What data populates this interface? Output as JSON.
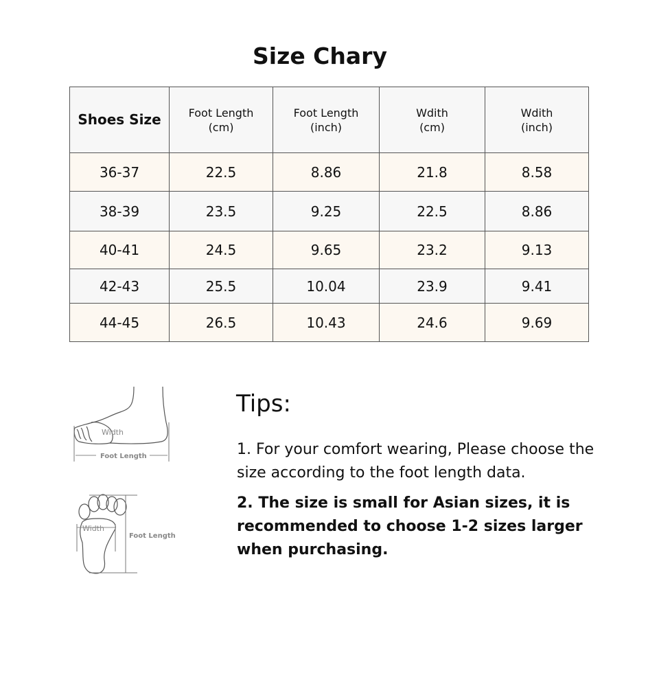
{
  "title": "Size Chary",
  "table": {
    "headers": [
      [
        "Shoes Size"
      ],
      [
        "Foot Length",
        "(cm)"
      ],
      [
        "Foot Length",
        "(inch)"
      ],
      [
        "Wdith",
        "(cm)"
      ],
      [
        "Wdith",
        "(inch)"
      ]
    ],
    "rows": [
      [
        "36-37",
        "22.5",
        "8.86",
        "21.8",
        "8.58"
      ],
      [
        "38-39",
        "23.5",
        "9.25",
        "22.5",
        "8.86"
      ],
      [
        "40-41",
        "24.5",
        "9.65",
        "23.2",
        "9.13"
      ],
      [
        "42-43",
        "25.5",
        "10.04",
        "23.9",
        "9.41"
      ],
      [
        "44-45",
        "26.5",
        "10.43",
        "24.6",
        "9.69"
      ]
    ]
  },
  "diagrams": {
    "width_label": "Width",
    "length_label": "Foot Length"
  },
  "tips": {
    "title": "Tips:",
    "items": [
      "1. For your comfort wearing, Please choose the size according to the foot length data.",
      "2. The size is small for Asian sizes, it is recommended to choose 1-2 sizes larger when purchasing."
    ]
  }
}
